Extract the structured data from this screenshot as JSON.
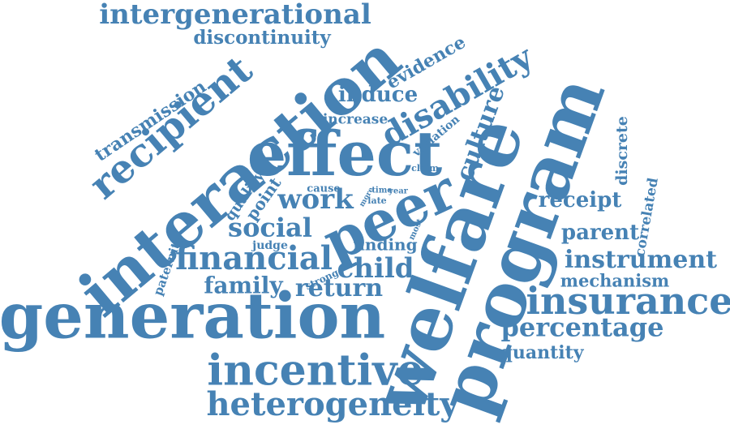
{
  "colors": {
    "word": "#4682b4",
    "background": "#ffffff"
  },
  "words": [
    "intergenerational",
    "discontinuity",
    "evidence",
    "transmission",
    "recipient",
    "interaction",
    "induce",
    "disability",
    "increase",
    "effect",
    "variation",
    "culture",
    "quality",
    "point",
    "claim",
    "cause",
    "more",
    "time",
    "year",
    "late",
    "work",
    "peer",
    "discrete",
    "receipt",
    "correlated",
    "social",
    "judge",
    "most",
    "finding",
    "parent",
    "paternity",
    "financial",
    "child",
    "instrument",
    "strong",
    "family",
    "return",
    "mechanism",
    "generation",
    "insurance",
    "welfare",
    "program",
    "percentage",
    "quantity",
    "incentive",
    "heterogeneity"
  ]
}
